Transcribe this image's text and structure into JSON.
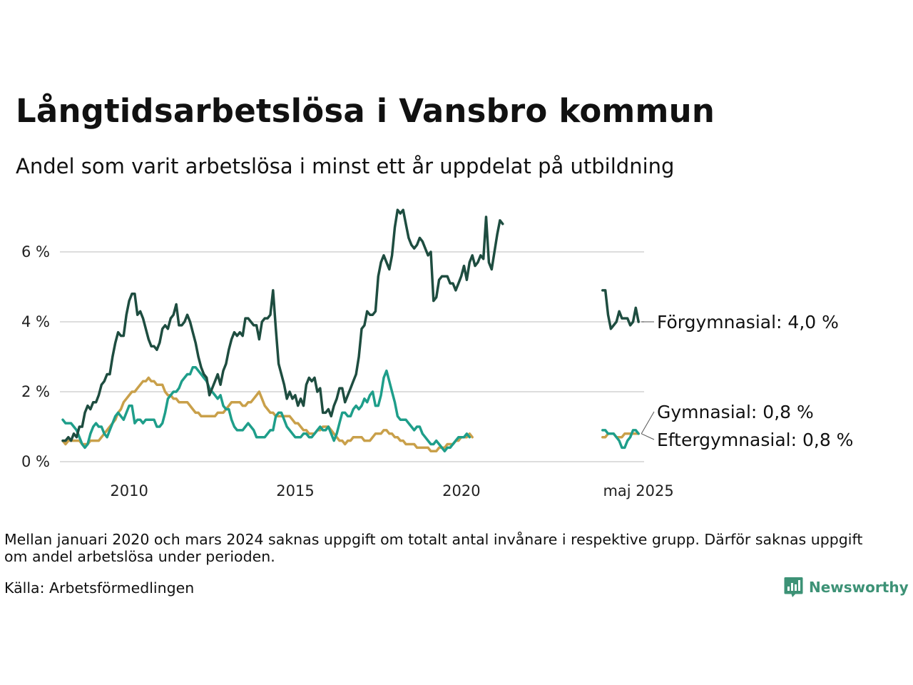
{
  "title": "Långtidsarbetslösa i Vansbro kommun",
  "subtitle": "Andel som varit arbetslösa i minst ett år uppdelat på utbildning",
  "note": "Mellan januari 2020 och mars 2024 saknas uppgift om totalt antal invånare i respektive grupp. Därför saknas uppgift om andel arbetslösa under perioden.",
  "source": "Källa: Arbetsförmedlingen",
  "brand": "Newsworthy",
  "colors": {
    "forgymnasial": "#1e4d40",
    "gymnasial": "#1e9e8a",
    "eftergymnasial": "#c9a04a",
    "grid": "#dddddd",
    "brand": "#3d9276"
  },
  "chart_data": {
    "type": "line",
    "ylim": [
      0,
      7.5
    ],
    "y_ticks": [
      0,
      2,
      4,
      6
    ],
    "y_tick_labels": [
      "0 %",
      "2 %",
      "4 %",
      "6 %"
    ],
    "x_tick_labels": [
      "2010",
      "2015",
      "2020",
      "maj 2025"
    ],
    "x_ticks": [
      2010,
      2015,
      2020,
      2025.33
    ],
    "grid": true,
    "series": [
      {
        "name": "Förgymnasial",
        "end_label": "Förgymnasial: 4,0 %",
        "segments": [
          {
            "x_start": 2008.0,
            "step": 0.0833,
            "values": [
              0.6,
              0.6,
              0.7,
              0.6,
              0.8,
              0.7,
              1.0,
              1.0,
              1.4,
              1.6,
              1.5,
              1.7,
              1.7,
              1.9,
              2.2,
              2.3,
              2.5,
              2.5,
              3.0,
              3.4,
              3.7,
              3.6,
              3.6,
              4.2,
              4.6,
              4.8,
              4.8,
              4.2,
              4.3,
              4.1,
              3.8,
              3.5,
              3.3,
              3.3,
              3.2,
              3.4,
              3.8,
              3.9,
              3.8,
              4.1,
              4.2,
              4.5,
              3.9,
              3.9,
              4.0,
              4.2,
              4.0,
              3.7,
              3.4,
              3.0,
              2.7,
              2.5,
              2.4,
              1.9,
              2.1,
              2.3,
              2.5,
              2.2,
              2.6,
              2.8,
              3.2,
              3.5,
              3.7,
              3.6,
              3.7,
              3.6,
              4.1,
              4.1,
              4.0,
              3.9,
              3.9,
              3.5,
              4.0,
              4.1,
              4.1,
              4.2,
              4.9,
              3.8,
              2.8,
              2.5,
              2.2,
              1.8,
              2.0,
              1.8,
              1.9,
              1.6,
              1.8,
              1.6,
              2.2,
              2.4,
              2.3,
              2.4,
              2.0,
              2.1,
              1.4,
              1.4,
              1.5,
              1.3,
              1.6,
              1.8,
              2.1,
              2.1,
              1.7,
              1.9,
              2.1,
              2.3,
              2.5,
              3.0,
              3.8,
              3.9,
              4.3,
              4.2,
              4.2,
              4.3,
              5.3,
              5.7,
              5.9,
              5.7,
              5.5,
              5.9,
              6.7,
              7.2,
              7.1,
              7.2,
              6.8,
              6.4,
              6.2,
              6.1,
              6.2,
              6.4,
              6.3,
              6.1,
              5.9,
              6.0,
              4.6,
              4.7,
              5.2,
              5.3,
              5.3,
              5.3,
              5.1,
              5.1,
              4.9,
              5.1,
              5.3,
              5.6,
              5.2,
              5.7,
              5.9,
              5.6,
              5.7,
              5.9,
              5.8,
              7.0,
              5.7,
              5.5,
              6.0,
              6.5,
              6.9,
              6.8
            ]
          },
          {
            "x_start": 2024.25,
            "step": 0.0833,
            "values": [
              4.9,
              4.9,
              4.2,
              3.8,
              3.9,
              4.0,
              4.3,
              4.1,
              4.1,
              4.1,
              3.9,
              4.0,
              4.4,
              4.0
            ]
          }
        ]
      },
      {
        "name": "Gymnasial",
        "end_label": "Gymnasial: 0,8 %",
        "segments": [
          {
            "x_start": 2008.0,
            "step": 0.0833,
            "values": [
              1.2,
              1.1,
              1.1,
              1.1,
              1.0,
              0.9,
              0.7,
              0.5,
              0.4,
              0.5,
              0.8,
              1.0,
              1.1,
              1.0,
              1.0,
              0.8,
              0.7,
              0.9,
              1.1,
              1.3,
              1.4,
              1.3,
              1.2,
              1.4,
              1.6,
              1.6,
              1.1,
              1.2,
              1.2,
              1.1,
              1.2,
              1.2,
              1.2,
              1.2,
              1.0,
              1.0,
              1.1,
              1.4,
              1.8,
              1.9,
              2.0,
              2.0,
              2.1,
              2.3,
              2.4,
              2.5,
              2.5,
              2.7,
              2.7,
              2.6,
              2.5,
              2.4,
              2.3,
              2.1,
              2.0,
              1.9,
              1.8,
              1.9,
              1.6,
              1.5,
              1.5,
              1.2,
              1.0,
              0.9,
              0.9,
              0.9,
              1.0,
              1.1,
              1.0,
              0.9,
              0.7,
              0.7,
              0.7,
              0.7,
              0.8,
              0.9,
              0.9,
              1.3,
              1.4,
              1.4,
              1.2,
              1.0,
              0.9,
              0.8,
              0.7,
              0.7,
              0.7,
              0.8,
              0.8,
              0.7,
              0.7,
              0.8,
              0.9,
              1.0,
              0.9,
              0.9,
              1.0,
              0.8,
              0.6,
              0.8,
              1.1,
              1.4,
              1.4,
              1.3,
              1.3,
              1.5,
              1.6,
              1.5,
              1.6,
              1.8,
              1.7,
              1.9,
              2.0,
              1.6,
              1.6,
              1.9,
              2.4,
              2.6,
              2.3,
              2.0,
              1.7,
              1.3,
              1.2,
              1.2,
              1.2,
              1.1,
              1.0,
              0.9,
              1.0,
              1.0,
              0.8,
              0.7,
              0.6,
              0.5,
              0.5,
              0.6,
              0.5,
              0.4,
              0.3,
              0.4,
              0.4,
              0.5,
              0.6,
              0.7,
              0.7,
              0.7,
              0.8,
              0.7
            ]
          },
          {
            "x_start": 2024.25,
            "step": 0.0833,
            "values": [
              0.9,
              0.9,
              0.8,
              0.8,
              0.8,
              0.7,
              0.6,
              0.4,
              0.4,
              0.6,
              0.7,
              0.9,
              0.9,
              0.8
            ]
          }
        ]
      },
      {
        "name": "Eftergymnasial",
        "end_label": "Eftergymnasial: 0,8 %",
        "segments": [
          {
            "x_start": 2008.0,
            "step": 0.0833,
            "values": [
              0.6,
              0.5,
              0.6,
              0.6,
              0.6,
              0.6,
              0.6,
              0.5,
              0.5,
              0.5,
              0.6,
              0.6,
              0.6,
              0.6,
              0.7,
              0.8,
              0.9,
              1.0,
              1.1,
              1.2,
              1.4,
              1.5,
              1.7,
              1.8,
              1.9,
              2.0,
              2.0,
              2.1,
              2.2,
              2.3,
              2.3,
              2.4,
              2.3,
              2.3,
              2.2,
              2.2,
              2.2,
              2.0,
              1.9,
              1.9,
              1.8,
              1.8,
              1.7,
              1.7,
              1.7,
              1.7,
              1.6,
              1.5,
              1.4,
              1.4,
              1.3,
              1.3,
              1.3,
              1.3,
              1.3,
              1.3,
              1.4,
              1.4,
              1.4,
              1.5,
              1.6,
              1.7,
              1.7,
              1.7,
              1.7,
              1.6,
              1.6,
              1.7,
              1.7,
              1.8,
              1.9,
              2.0,
              1.8,
              1.6,
              1.5,
              1.4,
              1.4,
              1.3,
              1.3,
              1.3,
              1.3,
              1.3,
              1.3,
              1.2,
              1.1,
              1.1,
              1.0,
              0.9,
              0.9,
              0.8,
              0.8,
              0.8,
              0.9,
              0.9,
              1.0,
              1.0,
              1.0,
              0.9,
              0.8,
              0.7,
              0.6,
              0.6,
              0.5,
              0.6,
              0.6,
              0.7,
              0.7,
              0.7,
              0.7,
              0.6,
              0.6,
              0.6,
              0.7,
              0.8,
              0.8,
              0.8,
              0.9,
              0.9,
              0.8,
              0.8,
              0.7,
              0.7,
              0.6,
              0.6,
              0.5,
              0.5,
              0.5,
              0.5,
              0.4,
              0.4,
              0.4,
              0.4,
              0.4,
              0.3,
              0.3,
              0.3,
              0.4,
              0.4,
              0.4,
              0.5,
              0.5,
              0.5,
              0.6,
              0.6,
              0.7,
              0.7,
              0.7,
              0.8,
              0.7
            ]
          },
          {
            "x_start": 2024.25,
            "step": 0.0833,
            "values": [
              0.7,
              0.7,
              0.8,
              0.8,
              0.8,
              0.7,
              0.7,
              0.7,
              0.8,
              0.8,
              0.8,
              0.8,
              0.8,
              0.8
            ]
          }
        ]
      }
    ]
  }
}
